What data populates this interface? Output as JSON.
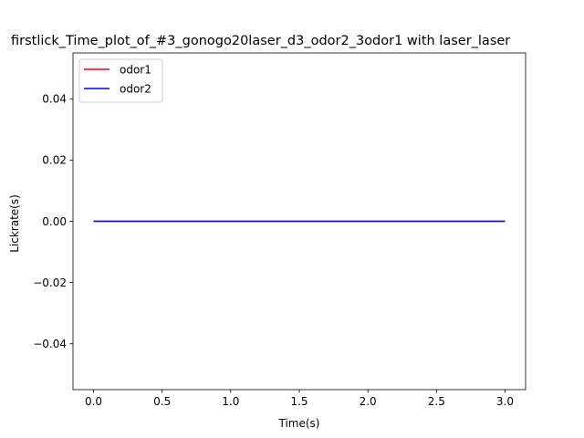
{
  "chart_data": {
    "type": "line",
    "title": "firstlick_Time_plot_of_#3_gonogo20laser_d3_odor2_3odor1 with laser_laser",
    "xlabel": "Time(s)",
    "ylabel": "Lickrate(s)",
    "xlim": [
      -0.15,
      3.15
    ],
    "ylim": [
      -0.055,
      0.055
    ],
    "xticks": [
      0.0,
      0.5,
      1.0,
      1.5,
      2.0,
      2.5,
      3.0
    ],
    "xtick_labels": [
      "0.0",
      "0.5",
      "1.0",
      "1.5",
      "2.0",
      "2.5",
      "3.0"
    ],
    "yticks": [
      -0.04,
      -0.02,
      0.0,
      0.02,
      0.04
    ],
    "ytick_labels": [
      "−0.04",
      "−0.02",
      "0.00",
      "0.02",
      "0.04"
    ],
    "grid": false,
    "legend_position": "top-left",
    "series": [
      {
        "name": "odor1",
        "color": "#ff0000",
        "x": [
          0.0,
          3.0
        ],
        "y": [
          0.0,
          0.0
        ]
      },
      {
        "name": "odor2",
        "color": "#0000ff",
        "x": [
          0.0,
          3.0
        ],
        "y": [
          0.0,
          0.0
        ]
      }
    ]
  }
}
